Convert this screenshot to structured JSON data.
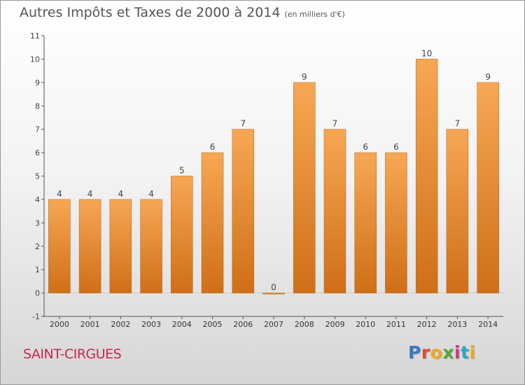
{
  "header": {
    "title": "Autres Impôts et Taxes de 2000 à 2014",
    "unit": "(en milliers d'€)"
  },
  "footer": {
    "place": "SAINT-CIRGUES",
    "logo": {
      "text": "Proxiti",
      "letters": [
        "P",
        "r",
        "o",
        "x",
        "i",
        "t",
        "i"
      ],
      "colors": [
        "#3a78c8",
        "#e8452c",
        "#f2a51e",
        "#5aa531",
        "#d8357a",
        "#2aa7c9",
        "#f2a51e"
      ]
    }
  },
  "colors": {
    "bar_top": "#f7a754",
    "bar_bottom": "#cf6f17",
    "bar_edge": "#b86012",
    "axis": "#555555",
    "grid": "#cccccc",
    "place_text": "#c8284e"
  },
  "chart_data": {
    "type": "bar",
    "title": "Autres Impôts et Taxes de 2000 à 2014",
    "xlabel": "",
    "ylabel": "",
    "categories": [
      "2000",
      "2001",
      "2002",
      "2003",
      "2004",
      "2005",
      "2006",
      "2007",
      "2008",
      "2009",
      "2010",
      "2011",
      "2012",
      "2013",
      "2014"
    ],
    "values": [
      4,
      4,
      4,
      4,
      5,
      6,
      7,
      0,
      9,
      7,
      6,
      6,
      10,
      7,
      9
    ],
    "data_labels": [
      "4",
      "4",
      "4",
      "4",
      "5",
      "6",
      "7",
      "0",
      "9",
      "7",
      "6",
      "6",
      "10",
      "7",
      "9"
    ],
    "ylim": [
      -1,
      11
    ],
    "yticks": [
      "-1",
      "0",
      "1",
      "2",
      "3",
      "4",
      "5",
      "6",
      "7",
      "8",
      "9",
      "10",
      "11"
    ],
    "grid": false,
    "legend": "none"
  }
}
